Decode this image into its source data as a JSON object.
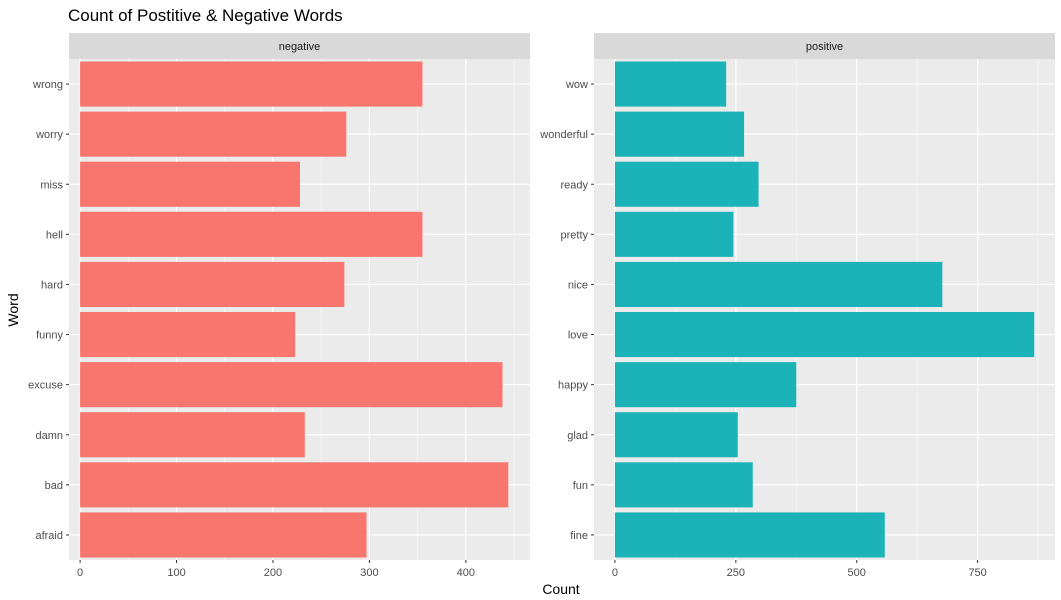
{
  "chart_data": {
    "type": "bar",
    "orientation": "horizontal",
    "title": "Count of Postitive & Negative Words",
    "xlabel": "Count",
    "ylabel": "Word",
    "grid": true,
    "legend": "none",
    "facets": [
      {
        "name": "negative",
        "color": "#F8766D",
        "categories": [
          "afraid",
          "bad",
          "damn",
          "excuse",
          "funny",
          "hard",
          "hell",
          "miss",
          "worry",
          "wrong"
        ],
        "values": [
          297,
          444,
          233,
          438,
          223,
          274,
          355,
          228,
          276,
          355
        ],
        "xlim": [
          -11.5,
          466.5
        ],
        "ticks": [
          0,
          100,
          200,
          300,
          400
        ],
        "tick_labels": [
          "0",
          "100",
          "200",
          "300",
          "400"
        ]
      },
      {
        "name": "positive",
        "color": "#1CB3B8",
        "categories": [
          "fine",
          "fun",
          "glad",
          "happy",
          "love",
          "nice",
          "pretty",
          "ready",
          "wonderful",
          "wow"
        ],
        "values": [
          558,
          285,
          254,
          375,
          867,
          677,
          245,
          297,
          267,
          230
        ],
        "xlim": [
          -43.3,
          910
        ],
        "ticks": [
          0,
          250,
          500,
          750
        ],
        "tick_labels": [
          "0",
          "250",
          "500",
          "750"
        ]
      }
    ]
  }
}
